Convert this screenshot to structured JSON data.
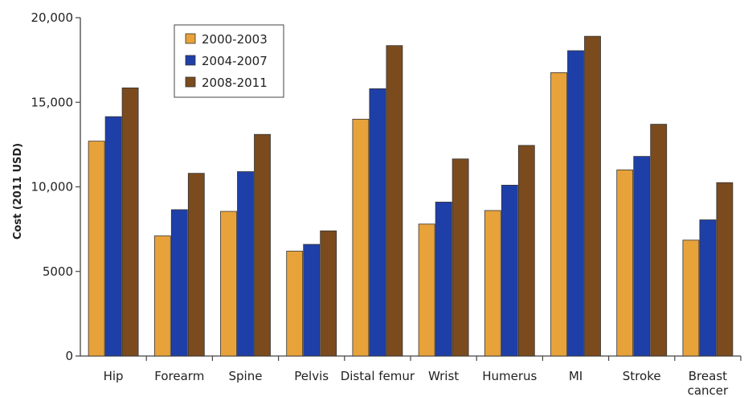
{
  "chart_data": {
    "type": "bar",
    "ylabel": "Cost (2011 USD)",
    "ylim": [
      0,
      20000
    ],
    "yticks": [
      0,
      5000,
      10000,
      15000,
      20000
    ],
    "ytick_labels": [
      "0",
      "5000",
      "10,000",
      "15,000",
      "20,000"
    ],
    "categories": [
      "Hip",
      "Forearm",
      "Spine",
      "Pelvis",
      "Distal femur",
      "Wrist",
      "Humerus",
      "MI",
      "Stroke",
      "Breast cancer"
    ],
    "category_lines": [
      [
        "Hip"
      ],
      [
        "Forearm"
      ],
      [
        "Spine"
      ],
      [
        "Pelvis"
      ],
      [
        "Distal femur"
      ],
      [
        "Wrist"
      ],
      [
        "Humerus"
      ],
      [
        "MI"
      ],
      [
        "Stroke"
      ],
      [
        "Breast",
        "cancer"
      ]
    ],
    "series": [
      {
        "name": "2000-2003",
        "color": "#E8A23A",
        "values": [
          12700,
          7100,
          8550,
          6200,
          14000,
          7800,
          8600,
          16750,
          11000,
          6850
        ]
      },
      {
        "name": "2004-2007",
        "color": "#1F3FA8",
        "values": [
          14150,
          8650,
          10900,
          6600,
          15800,
          9100,
          10100,
          18050,
          11800,
          8050
        ]
      },
      {
        "name": "2008-2011",
        "color": "#7B4B1E",
        "values": [
          15850,
          10800,
          13100,
          7400,
          18350,
          11650,
          12450,
          18900,
          13700,
          10250
        ]
      }
    ],
    "legend_position": "top-left",
    "grid": false
  }
}
